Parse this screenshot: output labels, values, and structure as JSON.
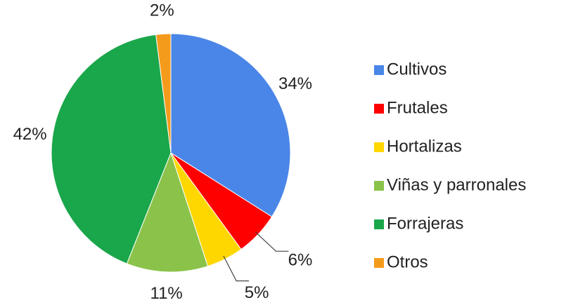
{
  "chart_data": {
    "type": "pie",
    "categories": [
      "Cultivos",
      "Frutales",
      "Hortalizas",
      "Viñas y parronales",
      "Forrajeras",
      "Otros"
    ],
    "values": [
      34,
      6,
      5,
      11,
      42,
      2
    ],
    "value_labels": [
      "34%",
      "6%",
      "5%",
      "11%",
      "42%",
      "2%"
    ],
    "colors": [
      "#4a86e8",
      "#ff0000",
      "#ffd700",
      "#8bc34a",
      "#1aa64a",
      "#f59b1c"
    ],
    "legend": "right"
  }
}
